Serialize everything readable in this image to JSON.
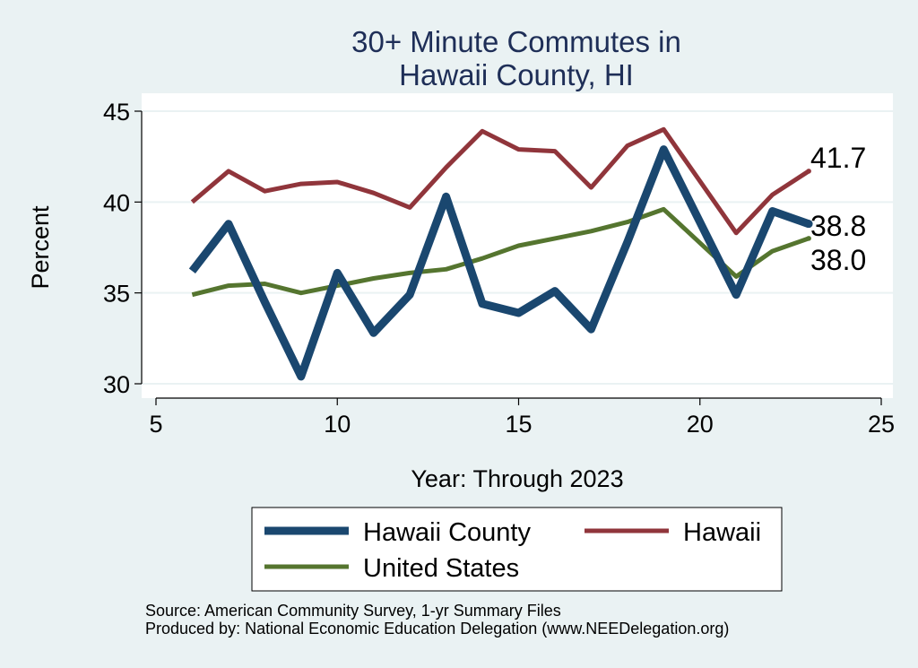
{
  "chart_data": {
    "type": "line",
    "title_lines": [
      "30+ Minute Commutes in",
      "Hawaii County, HI"
    ],
    "xlabel": "Year: Through 2023",
    "ylabel": "Percent",
    "xlim": [
      5,
      25
    ],
    "ylim": [
      30,
      45
    ],
    "xticks": [
      5,
      10,
      15,
      20,
      25
    ],
    "yticks": [
      30,
      35,
      40,
      45
    ],
    "grid": true,
    "x": [
      6,
      7,
      8,
      9,
      10,
      11,
      12,
      13,
      14,
      15,
      16,
      17,
      18,
      19,
      21,
      22,
      23
    ],
    "series": [
      {
        "name": "Hawaii County",
        "color": "#1a476f",
        "values": [
          36.2,
          38.8,
          34.5,
          30.4,
          36.1,
          32.8,
          34.9,
          40.3,
          34.4,
          33.9,
          35.1,
          33.0,
          37.8,
          42.9,
          34.9,
          39.5,
          38.8
        ],
        "end_label": "38.8"
      },
      {
        "name": "Hawaii",
        "color": "#90353b",
        "values": [
          40.0,
          41.7,
          40.6,
          41.0,
          41.1,
          40.5,
          39.7,
          41.9,
          43.9,
          42.9,
          42.8,
          40.8,
          43.1,
          44.0,
          38.3,
          40.4,
          41.7
        ],
        "end_label": "41.7"
      },
      {
        "name": "United States",
        "color": "#55752f",
        "values": [
          34.9,
          35.4,
          35.5,
          35.0,
          35.4,
          35.8,
          36.1,
          36.3,
          36.9,
          37.6,
          38.0,
          38.4,
          38.9,
          39.6,
          35.9,
          37.3,
          38.0
        ],
        "end_label": "38.0"
      }
    ],
    "legend": {
      "placement": "bottom",
      "entries": [
        "Hawaii County",
        "Hawaii",
        "United States"
      ]
    }
  },
  "notes": {
    "source": "Source: American Community Survey, 1-yr Summary Files",
    "produced": "Produced by: National Economic Education Delegation (www.NEEDelegation.org)"
  }
}
